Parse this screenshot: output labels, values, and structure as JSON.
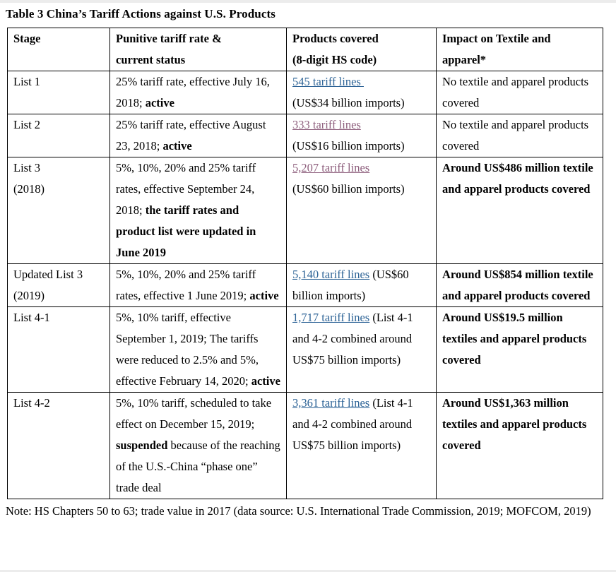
{
  "title": "Table 3 China’s Tariff Actions against U.S. Products",
  "note": "Note: HS Chapters 50 to 63; trade value in 2017 (data source: U.S. International Trade Commission, 2019; MOFCOM, 2019)",
  "colors": {
    "link_blue": "#2D6396",
    "link_visited": "#8E5F7D",
    "border": "#000000",
    "text": "#000000"
  },
  "table": {
    "headers": [
      {
        "name": "stage",
        "lines": [
          "Stage"
        ]
      },
      {
        "name": "rate",
        "lines": [
          "Punitive tariff rate &",
          "current status"
        ]
      },
      {
        "name": "products",
        "lines": [
          "Products covered",
          "(8-digit HS code)"
        ]
      },
      {
        "name": "impact",
        "lines": [
          "Impact on Textile and",
          "apparel*"
        ]
      }
    ],
    "rows": [
      {
        "stage_lines": [
          "List 1"
        ],
        "rate_segments": [
          {
            "t": "25% tariff rate, effective July 16, 2018; "
          },
          {
            "t": "active",
            "bold": true
          }
        ],
        "products_segments": [
          {
            "t": "545 tariff lines ",
            "link": "blue"
          },
          {
            "br": true
          },
          {
            "t": "(US$34 billion imports)"
          }
        ],
        "impact": {
          "text": "No textile and apparel products covered",
          "bold": false
        }
      },
      {
        "stage_lines": [
          "List 2"
        ],
        "rate_segments": [
          {
            "t": "25% tariff rate, effective August 23, 2018; "
          },
          {
            "t": "active",
            "bold": true
          }
        ],
        "products_segments": [
          {
            "t": "333 tariff lines",
            "link": "visited"
          },
          {
            "br": true
          },
          {
            "t": "(US$16 billion imports)"
          }
        ],
        "impact": {
          "text": "No textile and apparel products covered",
          "bold": false
        }
      },
      {
        "stage_lines": [
          "List 3",
          "(2018)"
        ],
        "rate_segments": [
          {
            "t": "5%, 10%, 20% and 25% tariff rates, effective September 24, 2018; "
          },
          {
            "t": "the tariff rates and product list were updated in June 2019",
            "bold": true
          }
        ],
        "products_segments": [
          {
            "t": "5,207 tariff lines",
            "link": "visited"
          },
          {
            "br": true
          },
          {
            "t": "(US$60 billion imports)"
          }
        ],
        "impact": {
          "text": "Around US$486 million textile and apparel products covered",
          "bold": true
        }
      },
      {
        "stage_lines": [
          "Updated List 3",
          "(2019)"
        ],
        "rate_segments": [
          {
            "t": "5%, 10%, 20% and 25% tariff rates, effective 1 June 2019; "
          },
          {
            "t": "active",
            "bold": true
          }
        ],
        "products_segments": [
          {
            "t": "5,140 tariff lines",
            "link": "blue"
          },
          {
            "t": " (US$60 billion imports)"
          }
        ],
        "impact": {
          "text": "Around US$854 million textile and apparel products covered",
          "bold": true
        }
      },
      {
        "stage_lines": [
          "List 4-1"
        ],
        "rate_segments": [
          {
            "t": "5%, 10% tariff, effective September 1, 2019; The tariffs were reduced to 2.5% and 5%, effective February 14, 2020; "
          },
          {
            "t": "active",
            "bold": true
          }
        ],
        "products_segments": [
          {
            "t": "1,717 tariff lines",
            "link": "blue"
          },
          {
            "t": " (List 4-1 and 4-2 combined around US$75 billion imports)"
          }
        ],
        "impact": {
          "text": "Around US$19.5 million textiles and apparel products covered",
          "bold": true
        }
      },
      {
        "stage_lines": [
          "List 4-2"
        ],
        "rate_segments": [
          {
            "t": "5%, 10% tariff, scheduled to take effect on December 15, 2019; "
          },
          {
            "t": "suspended",
            "bold": true
          },
          {
            "t": " because of the reaching of the U.S.-China “phase one” trade deal"
          }
        ],
        "products_segments": [
          {
            "t": "3,361 tariff lines",
            "link": "blue"
          },
          {
            "t": " (List 4-1 and 4-2 combined around US$75 billion imports)"
          }
        ],
        "impact": {
          "text": "Around US$1,363 million textiles and apparel products covered",
          "bold": true
        }
      }
    ]
  }
}
